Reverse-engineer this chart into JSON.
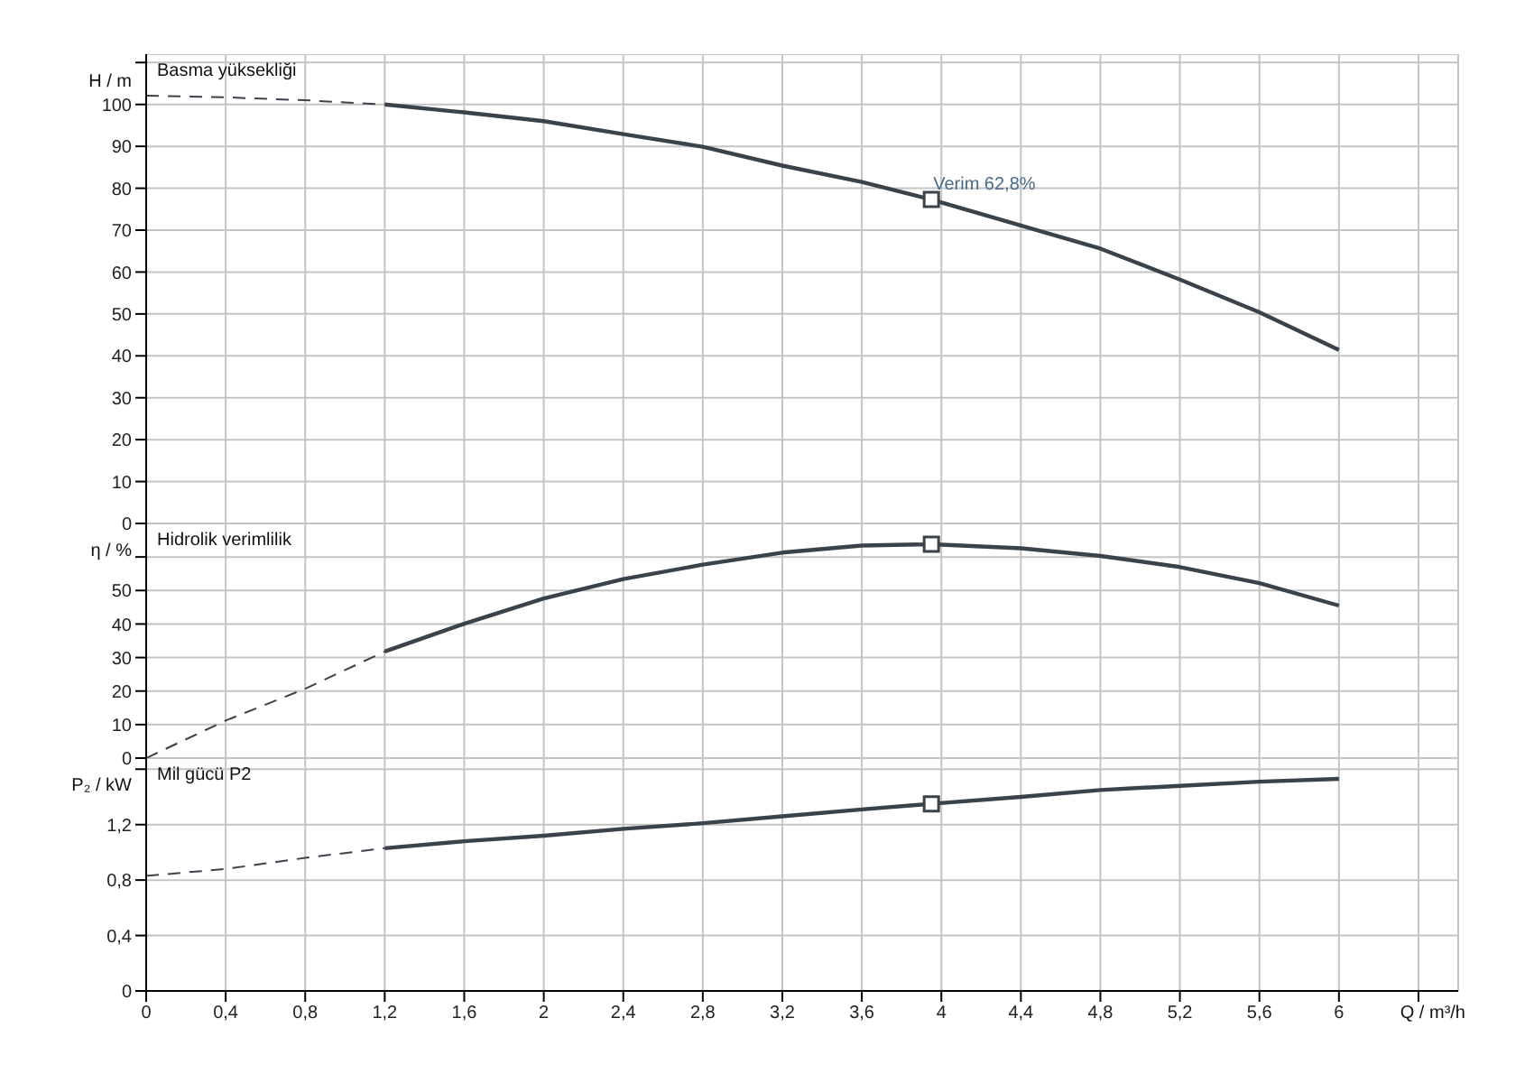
{
  "chart_data": [
    {
      "type": "line",
      "title": "Basma yüksekliği",
      "ylabel": "H / m",
      "xlim": [
        0,
        6.6
      ],
      "ylim": [
        0,
        112
      ],
      "grid": true,
      "tick_labels": "y",
      "xticks": [
        0,
        0.4,
        0.8,
        1.2,
        1.6,
        2,
        2.4,
        2.8,
        3.2,
        3.6,
        4,
        4.4,
        4.8,
        5.2,
        5.6,
        6,
        {
          "value": 6.4,
          "label": null
        }
      ],
      "yticks": [
        0,
        10,
        20,
        30,
        40,
        50,
        60,
        70,
        80,
        90,
        100,
        {
          "value": 110,
          "label": null
        }
      ],
      "annotations": [
        {
          "text": "Verim  62,8%",
          "x": 3.95,
          "y": 77.3
        }
      ],
      "series": [
        {
          "type": "line",
          "color": "#3a424b",
          "line_style": "dashed",
          "marker": "none",
          "x": [
            0,
            0.4,
            0.8,
            1.2
          ],
          "values": [
            102.1,
            101.7,
            101,
            100
          ]
        },
        {
          "type": "line",
          "color": "#3a424b",
          "line_style": "solid",
          "marker": "none",
          "x": [
            1.2,
            1.6,
            2,
            2.4,
            2.8,
            3.2,
            3.6,
            3.95,
            4.4,
            4.8,
            5.2,
            5.6,
            6
          ],
          "values": [
            100,
            98.1,
            96,
            92.9,
            89.9,
            85.4,
            81.5,
            77.3,
            71.1,
            65.6,
            58.2,
            50.4,
            41.4
          ]
        },
        {
          "type": "scatter",
          "color": "#3a424b",
          "marker": "square",
          "x": [
            3.95
          ],
          "values": [
            77.3
          ]
        }
      ]
    },
    {
      "type": "line",
      "title": "Hidrolik verimlilik",
      "ylabel": "η / %",
      "xlim": [
        0,
        6.6
      ],
      "ylim": [
        0,
        70
      ],
      "grid": true,
      "tick_labels": "y",
      "xticks": [
        0,
        0.4,
        0.8,
        1.2,
        1.6,
        2,
        2.4,
        2.8,
        3.2,
        3.6,
        4,
        4.4,
        4.8,
        5.2,
        5.6,
        6,
        {
          "value": 6.4,
          "label": null
        }
      ],
      "yticks": [
        0,
        10,
        20,
        30,
        40,
        50,
        {
          "value": 60,
          "label": null
        }
      ],
      "series": [
        {
          "type": "line",
          "color": "#3a424b",
          "line_style": "dashed",
          "marker": "none",
          "x": [
            0,
            0.4,
            0.8,
            1.2
          ],
          "values": [
            0,
            11.2,
            20.7,
            31.8
          ]
        },
        {
          "type": "line",
          "color": "#3a424b",
          "line_style": "solid",
          "marker": "none",
          "x": [
            1.2,
            1.6,
            2,
            2.4,
            2.8,
            3.2,
            3.6,
            3.95,
            4.4,
            4.8,
            5.2,
            5.6,
            6
          ],
          "values": [
            31.8,
            40.1,
            47.6,
            53.4,
            57.7,
            61.3,
            63.4,
            63.8,
            62.6,
            60.3,
            57,
            52.2,
            45.5
          ]
        },
        {
          "type": "scatter",
          "color": "#3a424b",
          "marker": "square",
          "x": [
            3.95
          ],
          "values": [
            63.8
          ]
        }
      ]
    },
    {
      "type": "line",
      "title": "Mil gücü P2",
      "ylabel": "P₂ / kW",
      "xlabel": "Q / m³/h",
      "xlim": [
        0,
        6.6
      ],
      "ylim": [
        0,
        1.68
      ],
      "grid": true,
      "xticks": [
        0,
        {
          "value": 0.4,
          "label": "0,4"
        },
        {
          "value": 0.8,
          "label": "0,8"
        },
        {
          "value": 1.2,
          "label": "1,2"
        },
        {
          "value": 1.6,
          "label": "1,6"
        },
        2,
        {
          "value": 2.4,
          "label": "2,4"
        },
        {
          "value": 2.8,
          "label": "2,8"
        },
        {
          "value": 3.2,
          "label": "3,2"
        },
        {
          "value": 3.6,
          "label": "3,6"
        },
        4,
        {
          "value": 4.4,
          "label": "4,4"
        },
        {
          "value": 4.8,
          "label": "4,8"
        },
        {
          "value": 5.2,
          "label": "5,2"
        },
        {
          "value": 5.6,
          "label": "5,6"
        },
        6,
        {
          "value": 6.4,
          "label": null
        }
      ],
      "yticks": [
        0,
        {
          "value": 0.4,
          "label": "0,4"
        },
        {
          "value": 0.8,
          "label": "0,8"
        },
        {
          "value": 1.2,
          "label": "1,2"
        },
        {
          "value": 1.6,
          "label": null
        }
      ],
      "series": [
        {
          "type": "line",
          "color": "#3a424b",
          "line_style": "dashed",
          "marker": "none",
          "x": [
            0,
            0.4,
            0.8,
            1.2
          ],
          "values": [
            0.83,
            0.88,
            0.96,
            1.03
          ]
        },
        {
          "type": "line",
          "color": "#3a424b",
          "line_style": "solid",
          "marker": "none",
          "x": [
            1.2,
            1.6,
            2,
            2.4,
            2.8,
            3.2,
            3.6,
            3.95,
            4.4,
            4.8,
            5.2,
            5.6,
            6
          ],
          "values": [
            1.03,
            1.08,
            1.12,
            1.17,
            1.21,
            1.26,
            1.31,
            1.35,
            1.4,
            1.45,
            1.48,
            1.51,
            1.53
          ]
        },
        {
          "type": "scatter",
          "color": "#3a424b",
          "marker": "square",
          "x": [
            3.95
          ],
          "values": [
            1.35
          ]
        }
      ]
    }
  ]
}
